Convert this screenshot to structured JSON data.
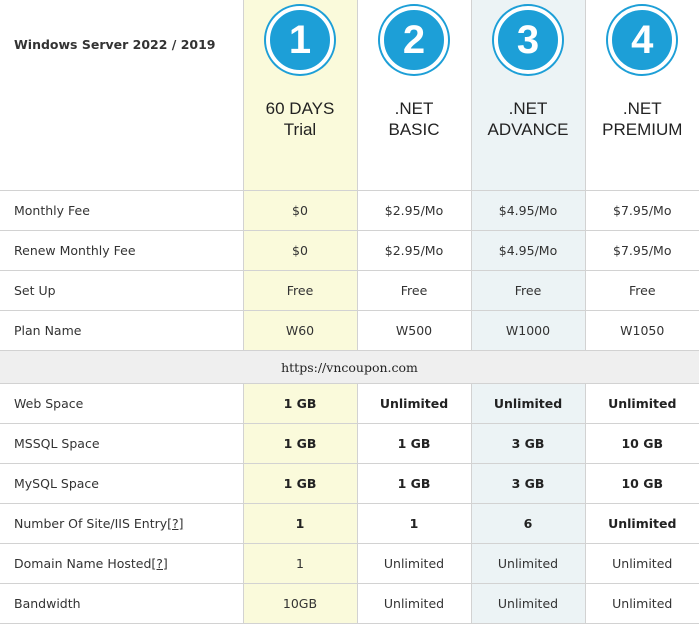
{
  "table": {
    "os_title": "Windows Server 2022 / 2019",
    "plans": [
      {
        "number": "1",
        "line1": "60 DAYS",
        "line2": "Trial"
      },
      {
        "number": "2",
        "line1": ".NET",
        "line2": "BASIC"
      },
      {
        "number": "3",
        "line1": ".NET",
        "line2": "ADVANCE"
      },
      {
        "number": "4",
        "line1": ".NET",
        "line2": "PREMIUM"
      }
    ],
    "rows_top": [
      {
        "label": "Monthly Fee",
        "values": [
          "$0",
          "$2.95/Mo",
          "$4.95/Mo",
          "$7.95/Mo"
        ]
      },
      {
        "label": "Renew Monthly Fee",
        "values": [
          "$0",
          "$2.95/Mo",
          "$4.95/Mo",
          "$7.95/Mo"
        ]
      },
      {
        "label": "Set Up",
        "values": [
          "Free",
          "Free",
          "Free",
          "Free"
        ]
      },
      {
        "label": "Plan Name",
        "values": [
          "W60",
          "W500",
          "W1000",
          "W1050"
        ]
      }
    ],
    "separator_text": "https://vncoupon.com",
    "rows_bottom": [
      {
        "label": "Web Space",
        "values": [
          "1 GB",
          "Unlimited",
          "Unlimited",
          "Unlimited"
        ]
      },
      {
        "label": "MSSQL Space",
        "values": [
          "1 GB",
          "1 GB",
          "3 GB",
          "10 GB"
        ]
      },
      {
        "label": "MySQL Space",
        "values": [
          "1 GB",
          "1 GB",
          "3 GB",
          "10 GB"
        ]
      },
      {
        "label": "Number Of Site/IIS Entry",
        "help": "[?]",
        "values": [
          "1",
          "1",
          "6",
          "Unlimited"
        ]
      },
      {
        "label": "Domain Name Hosted",
        "help": "[?]",
        "values": [
          "1",
          "Unlimited",
          "Unlimited",
          "Unlimited"
        ]
      },
      {
        "label": "Bandwidth",
        "values": [
          "10GB",
          "Unlimited",
          "Unlimited",
          "Unlimited"
        ]
      }
    ]
  },
  "colors": {
    "badge_blue": "#1d9fd7",
    "trial_highlight": "#fafadb",
    "advance_highlight": "#ecf3f5",
    "separator_bg": "#efefef"
  }
}
